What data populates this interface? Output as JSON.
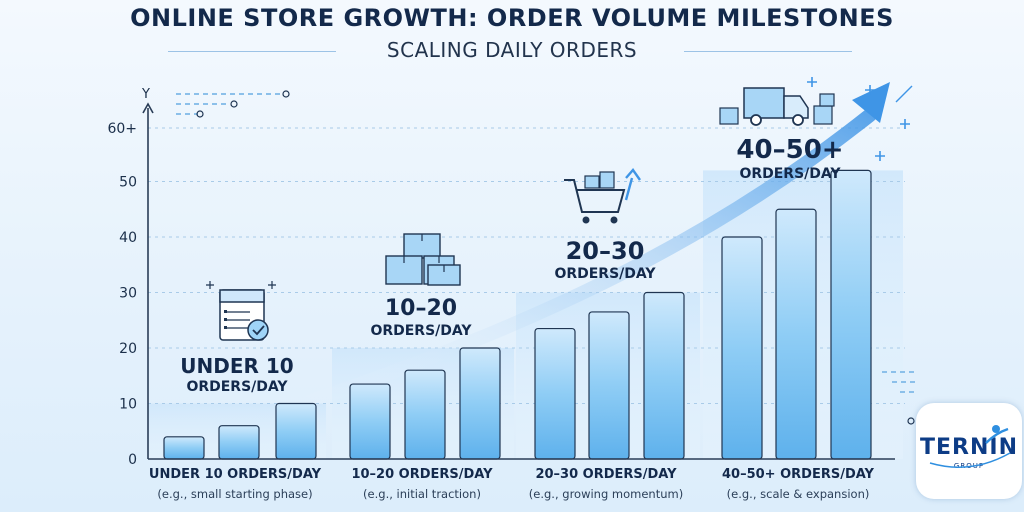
{
  "title": "ONLINE STORE GROWTH: ORDER VOLUME MILESTONES",
  "subtitle": "SCALING DAILY ORDERS",
  "chart_data": {
    "type": "bar",
    "ylabel": "Y",
    "ylim": [
      0,
      60
    ],
    "yticks": [
      "0",
      "10",
      "20",
      "30",
      "40",
      "50",
      "60+"
    ],
    "grid": true,
    "groups": [
      {
        "label": "UNDER 10 ORDERS/DAY",
        "sublabel": "(e.g., small starting phase)",
        "milestone": [
          "UNDER 10",
          "ORDERS/DAY"
        ],
        "icon": "order-checklist-icon",
        "values": [
          4,
          6,
          10
        ]
      },
      {
        "label": "10–20 ORDERS/DAY",
        "sublabel": "(e.g., initial traction)",
        "milestone": [
          "10–20",
          "ORDERS/DAY"
        ],
        "icon": "stacked-boxes-icon",
        "values": [
          13.5,
          16,
          20
        ]
      },
      {
        "label": "20–30 ORDERS/DAY",
        "sublabel": "(e.g., growing momentum)",
        "milestone": [
          "20–30",
          "ORDERS/DAY"
        ],
        "icon": "shopping-cart-icon",
        "values": [
          23.5,
          26.5,
          30
        ]
      },
      {
        "label": "40–50+ ORDERS/DAY",
        "sublabel": "(e.g., scale & expansion)",
        "milestone": [
          "40–50+",
          "ORDERS/DAY"
        ],
        "icon": "delivery-truck-icon",
        "values": [
          40,
          45,
          52
        ]
      }
    ],
    "bar_color": "#7cc2f2",
    "trend_arrow_color": "#3f95e6"
  },
  "logo": {
    "name": "TERNIN",
    "sub": "GROUP"
  }
}
